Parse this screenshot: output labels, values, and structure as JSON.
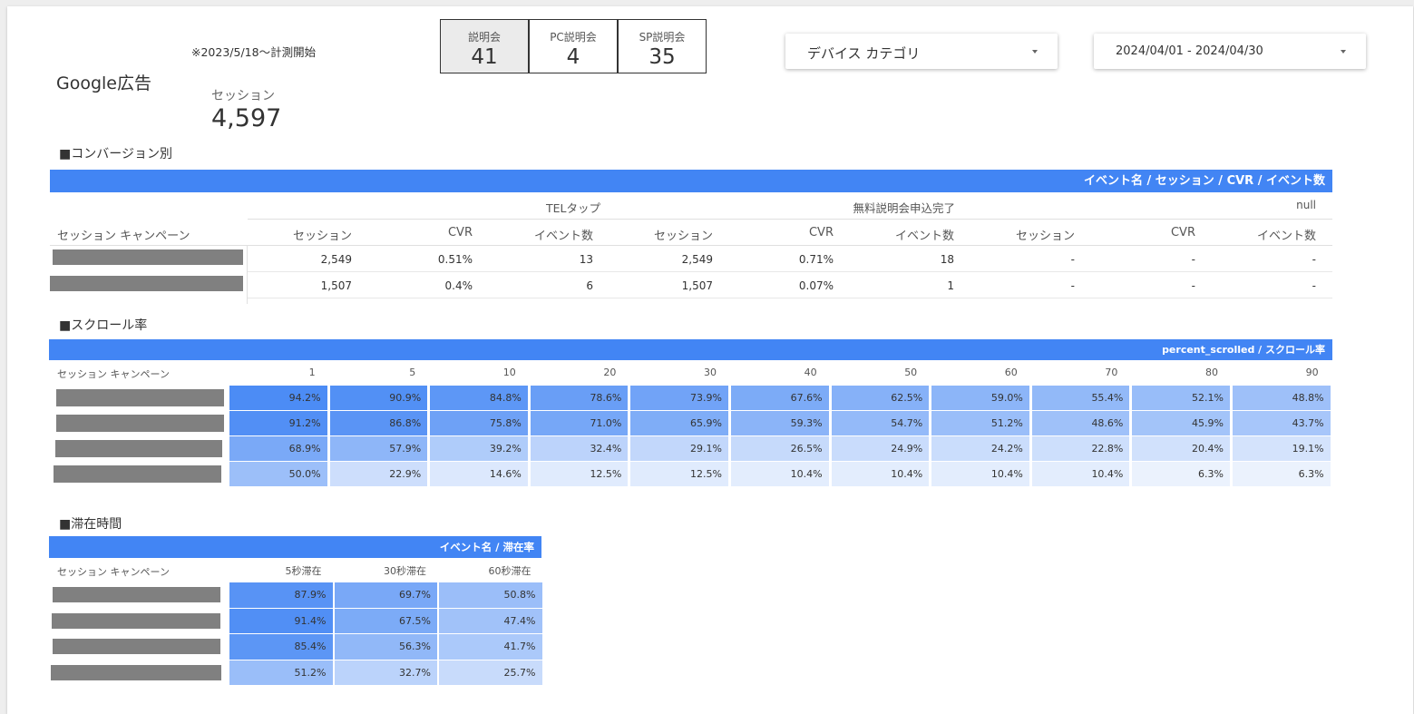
{
  "note": "※2023/5/18〜計測開始",
  "google_title": "Google広告",
  "sessions": {
    "label": "セッション",
    "value": "4,597"
  },
  "kpis": [
    {
      "label": "説明会",
      "value": "41"
    },
    {
      "label": "PC説明会",
      "value": "4"
    },
    {
      "label": "SP説明会",
      "value": "35"
    }
  ],
  "device_dropdown": {
    "label": "デバイス カテゴリ"
  },
  "date_dropdown": {
    "label": "2024/04/01 - 2024/04/30"
  },
  "conversion": {
    "section_title": "■コンバージョン別",
    "bar_title": "イベント名 / セッション / CVR / イベント数",
    "row_header": "セッション キャンペーン",
    "groups": [
      "TELタップ",
      "無料説明会申込完了",
      "null"
    ],
    "metrics": [
      "セッション",
      "CVR",
      "イベント数"
    ],
    "rows": [
      [
        "2,549",
        "0.51%",
        "13",
        "2,549",
        "0.71%",
        "18",
        "-",
        "-",
        "-"
      ],
      [
        "1,507",
        "0.4%",
        "6",
        "1,507",
        "0.07%",
        "1",
        "-",
        "-",
        "-"
      ]
    ]
  },
  "scroll": {
    "section_title": "■スクロール率",
    "bar_title": "percent_scrolled / スクロール率",
    "row_header": "セッション キャンペーン",
    "columns": [
      "1",
      "5",
      "10",
      "20",
      "30",
      "40",
      "50",
      "60",
      "70",
      "80",
      "90"
    ],
    "rows": [
      [
        "94.2%",
        "90.9%",
        "84.8%",
        "78.6%",
        "73.9%",
        "67.6%",
        "62.5%",
        "59.0%",
        "55.4%",
        "52.1%",
        "48.8%"
      ],
      [
        "91.2%",
        "86.8%",
        "75.8%",
        "71.0%",
        "65.9%",
        "59.3%",
        "54.7%",
        "51.2%",
        "48.6%",
        "45.9%",
        "43.7%"
      ],
      [
        "68.9%",
        "57.9%",
        "39.2%",
        "32.4%",
        "29.1%",
        "26.5%",
        "24.9%",
        "24.2%",
        "22.8%",
        "20.4%",
        "19.1%"
      ],
      [
        "50.0%",
        "22.9%",
        "14.6%",
        "12.5%",
        "12.5%",
        "10.4%",
        "10.4%",
        "10.4%",
        "10.4%",
        "6.3%",
        "6.3%"
      ]
    ]
  },
  "dwell": {
    "section_title": "■滞在時間",
    "bar_title": "イベント名 / 滞在率",
    "row_header": "セッション キャンペーン",
    "columns": [
      "5秒滞在",
      "30秒滞在",
      "60秒滞在"
    ],
    "rows": [
      [
        "87.9%",
        "69.7%",
        "50.8%"
      ],
      [
        "91.4%",
        "67.5%",
        "47.4%"
      ],
      [
        "85.4%",
        "56.3%",
        "41.7%"
      ],
      [
        "51.2%",
        "32.7%",
        "25.7%"
      ]
    ]
  },
  "colors": {
    "accent": "#4285f4",
    "redacted": "#808080"
  }
}
